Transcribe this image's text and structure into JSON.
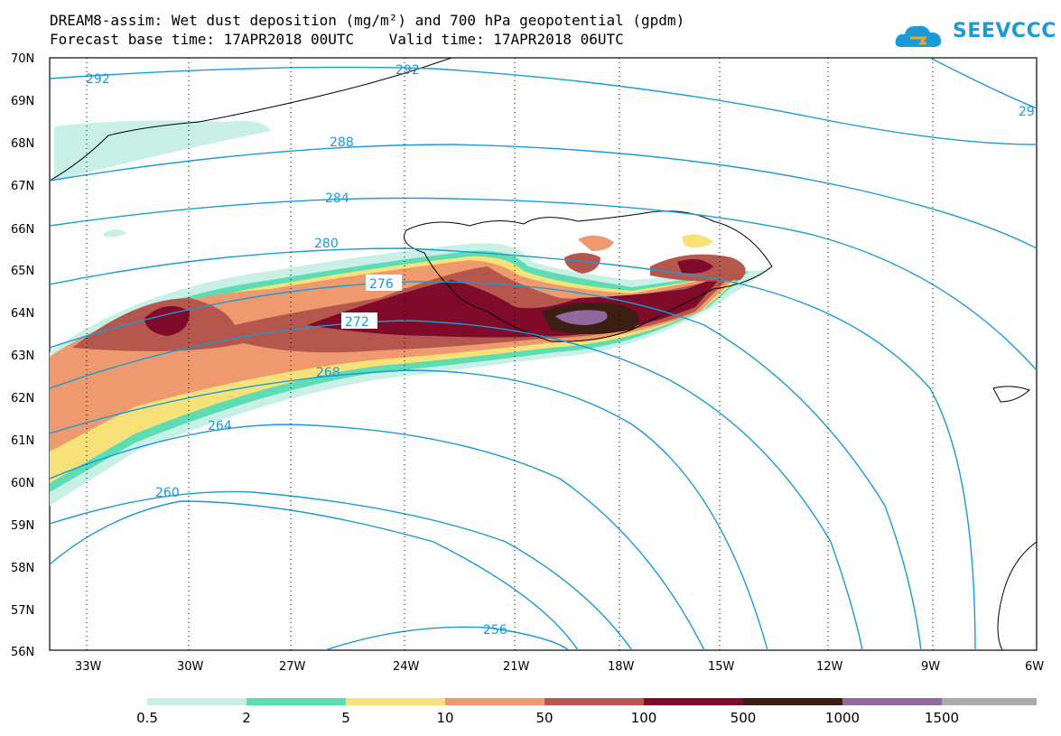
{
  "header": {
    "title_line1": "DREAM8-assim: Wet dust deposition (mg/m²) and 700 hPa geopotential (gpdm)",
    "title_line2": "Forecast base time: 17APR2018 00UTC    Valid time: 17APR2018 06UTC"
  },
  "logo": {
    "text": "SEEVCCC",
    "icon": "cloud-icon"
  },
  "axes": {
    "lat_labels": [
      "70N",
      "69N",
      "68N",
      "67N",
      "66N",
      "65N",
      "64N",
      "63N",
      "62N",
      "61N",
      "60N",
      "59N",
      "58N",
      "57N",
      "56N"
    ],
    "lon_labels": [
      "33W",
      "30W",
      "27W",
      "24W",
      "21W",
      "18W",
      "15W",
      "12W",
      "9W",
      "6W"
    ]
  },
  "contours": {
    "labels": [
      "292",
      "292",
      "29",
      "288",
      "284",
      "280",
      "276",
      "272",
      "268",
      "264",
      "260",
      "256"
    ],
    "color": "#1a9ad6"
  },
  "colorbar": {
    "labels": [
      "0.5",
      "2",
      "5",
      "10",
      "50",
      "100",
      "500",
      "1000",
      "1500"
    ],
    "colors": [
      "#c8f0e6",
      "#5edcb4",
      "#f7e27a",
      "#ee9a6e",
      "#b5574c",
      "#7f0a2a",
      "#3d1e12",
      "#8e6a9e",
      "#ababab"
    ]
  }
}
